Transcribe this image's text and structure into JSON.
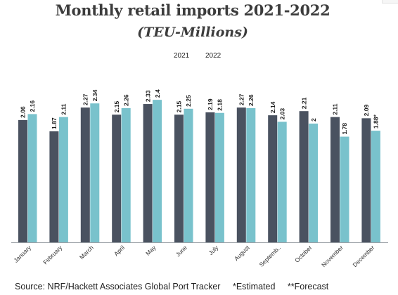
{
  "chart_data": {
    "type": "bar",
    "title": "Monthly retail imports 2021-2022",
    "subtitle": "(TEU-Millions)",
    "categories": [
      "January",
      "February",
      "March",
      "April",
      "May",
      "June",
      "July",
      "August",
      "Septemb..",
      "October",
      "November",
      "December"
    ],
    "series": [
      {
        "name": "2021",
        "color": "#4a5260",
        "values": [
          2.06,
          1.87,
          2.27,
          2.15,
          2.33,
          2.15,
          2.19,
          2.27,
          2.14,
          2.21,
          2.11,
          2.09
        ],
        "labels": [
          "2.06",
          "1.87",
          "2.27",
          "2.15",
          "2.33",
          "2.15",
          "2.19",
          "2.27",
          "2.14",
          "2.21",
          "2.11",
          "2.09"
        ]
      },
      {
        "name": "2022",
        "color": "#79c2cc",
        "values": [
          2.16,
          2.11,
          2.34,
          2.26,
          2.4,
          2.25,
          2.18,
          2.26,
          2.03,
          2.0,
          1.78,
          1.88
        ],
        "labels": [
          "2.16",
          "2.11",
          "2.34",
          "2.26",
          "2.4",
          "2.25",
          "2.18",
          "2.26",
          "2.03",
          "2",
          "1.78",
          "1.88*"
        ]
      }
    ],
    "ylim": [
      0,
      2.52
    ],
    "grid": false,
    "legend_placement": "top-center"
  },
  "footer": {
    "source": "Source: NRF/Hackett Associates Global Port Tracker",
    "estimated": "*Estimated",
    "forecast": "**Forecast"
  }
}
